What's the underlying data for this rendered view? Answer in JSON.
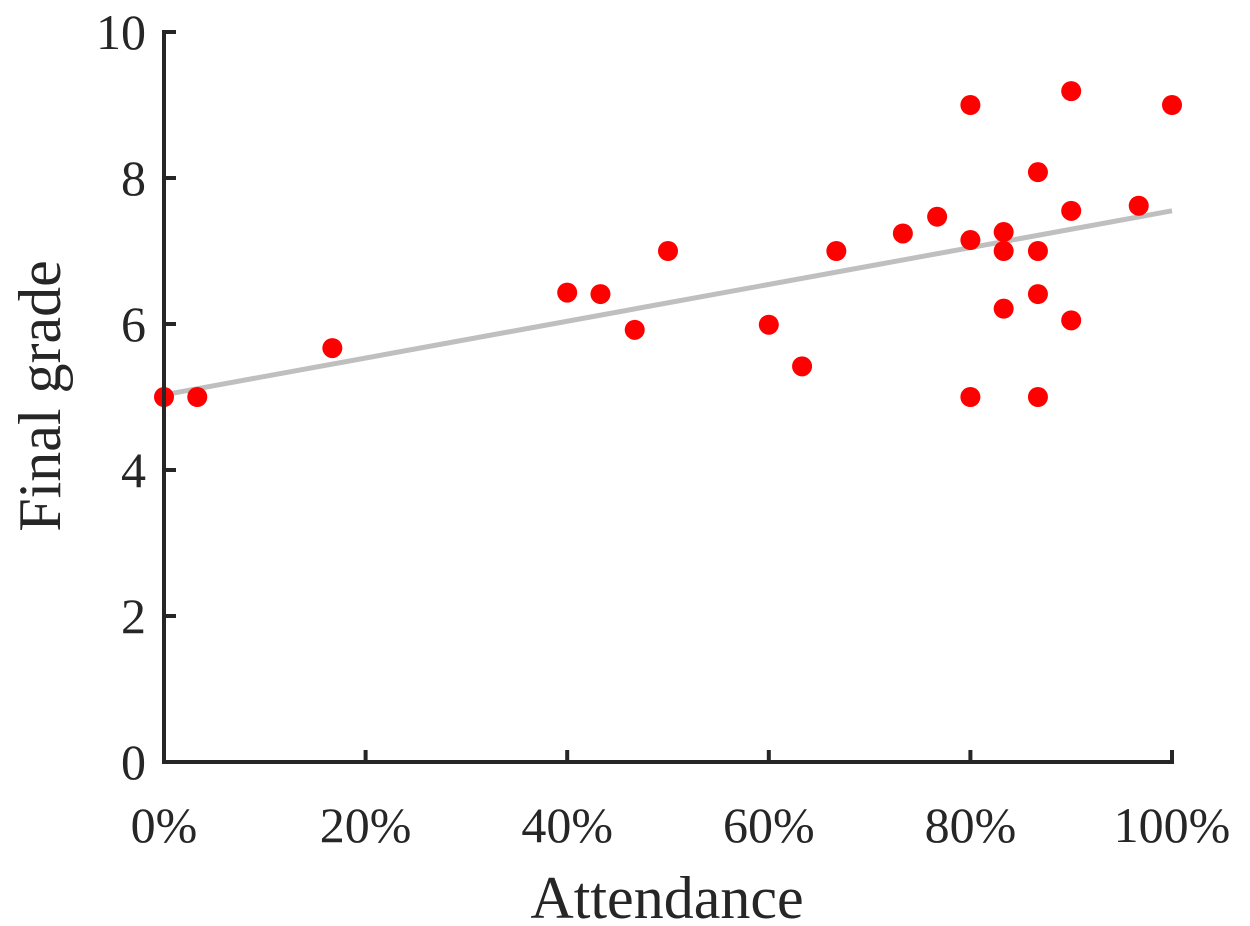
{
  "chart_data": {
    "type": "scatter",
    "title": "",
    "xlabel": "Attendance",
    "ylabel": "Final grade",
    "xlim": [
      0,
      1
    ],
    "ylim": [
      0,
      10
    ],
    "x_ticks": [
      0,
      0.2,
      0.4,
      0.6,
      0.8,
      1.0
    ],
    "x_tick_labels": [
      "0%",
      "20%",
      "40%",
      "60%",
      "80%",
      "100%"
    ],
    "y_ticks": [
      0,
      2,
      4,
      6,
      8,
      10
    ],
    "y_tick_labels": [
      "0",
      "2",
      "4",
      "6",
      "8",
      "10"
    ],
    "grid": false,
    "colors": {
      "points": "#ff0000",
      "trend": "#bfbfbf",
      "axis": "#262626"
    },
    "series": [
      {
        "marker": "filled-circle",
        "points": [
          {
            "x": 0.0,
            "y": 5.0
          },
          {
            "x": 0.033,
            "y": 5.0
          },
          {
            "x": 0.167,
            "y": 5.67
          },
          {
            "x": 0.4,
            "y": 6.43
          },
          {
            "x": 0.433,
            "y": 6.41
          },
          {
            "x": 0.467,
            "y": 5.92
          },
          {
            "x": 0.5,
            "y": 7.0
          },
          {
            "x": 0.6,
            "y": 5.99
          },
          {
            "x": 0.633,
            "y": 5.42
          },
          {
            "x": 0.667,
            "y": 7.0
          },
          {
            "x": 0.733,
            "y": 7.24
          },
          {
            "x": 0.767,
            "y": 7.47
          },
          {
            "x": 0.8,
            "y": 9.0
          },
          {
            "x": 0.8,
            "y": 7.15
          },
          {
            "x": 0.8,
            "y": 5.0
          },
          {
            "x": 0.833,
            "y": 7.26
          },
          {
            "x": 0.833,
            "y": 7.0
          },
          {
            "x": 0.833,
            "y": 6.21
          },
          {
            "x": 0.867,
            "y": 8.08
          },
          {
            "x": 0.867,
            "y": 7.0
          },
          {
            "x": 0.867,
            "y": 6.41
          },
          {
            "x": 0.867,
            "y": 5.0
          },
          {
            "x": 0.9,
            "y": 9.19
          },
          {
            "x": 0.9,
            "y": 7.55
          },
          {
            "x": 0.9,
            "y": 6.05
          },
          {
            "x": 0.967,
            "y": 7.62
          },
          {
            "x": 1.0,
            "y": 9.0
          }
        ]
      }
    ],
    "trend_line": {
      "x": [
        0,
        1
      ],
      "y": [
        5.03,
        7.55
      ]
    }
  }
}
